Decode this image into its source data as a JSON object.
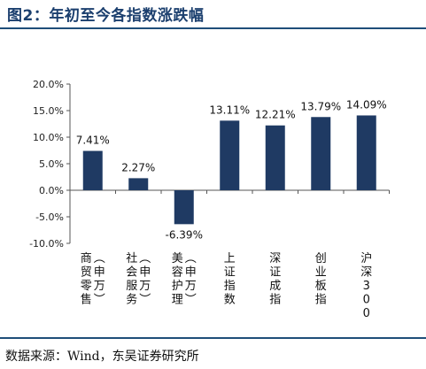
{
  "figure": {
    "title": "图2：年初至今各指数涨跌幅",
    "source": "数据来源：Wind，东吴证券研究所"
  },
  "colors": {
    "bar": "#1f3a63",
    "rule": "#1f4e79",
    "title": "#1b3f6e"
  },
  "chart_data": {
    "type": "bar",
    "title": "",
    "xlabel": "",
    "ylabel": "",
    "categories": [
      "商贸零售（申万）",
      "社会服务（申万）",
      "美容护理（申万）",
      "上证指数",
      "深证成指",
      "创业板指",
      "沪深300"
    ],
    "values": [
      7.41,
      2.27,
      -6.39,
      13.11,
      12.21,
      13.79,
      14.09
    ],
    "data_labels": [
      "7.41%",
      "2.27%",
      "-6.39%",
      "13.11%",
      "12.21%",
      "13.79%",
      "14.09%"
    ],
    "ylim": [
      -10,
      20
    ],
    "yticks": [
      20,
      15,
      10,
      5,
      0,
      -5,
      -10
    ],
    "ytick_labels": [
      "20.0%",
      "15.0%",
      "10.0%",
      "5.0%",
      "0.0%",
      "-5.0%",
      "-10.0%"
    ],
    "grid": false,
    "legend": "none"
  }
}
